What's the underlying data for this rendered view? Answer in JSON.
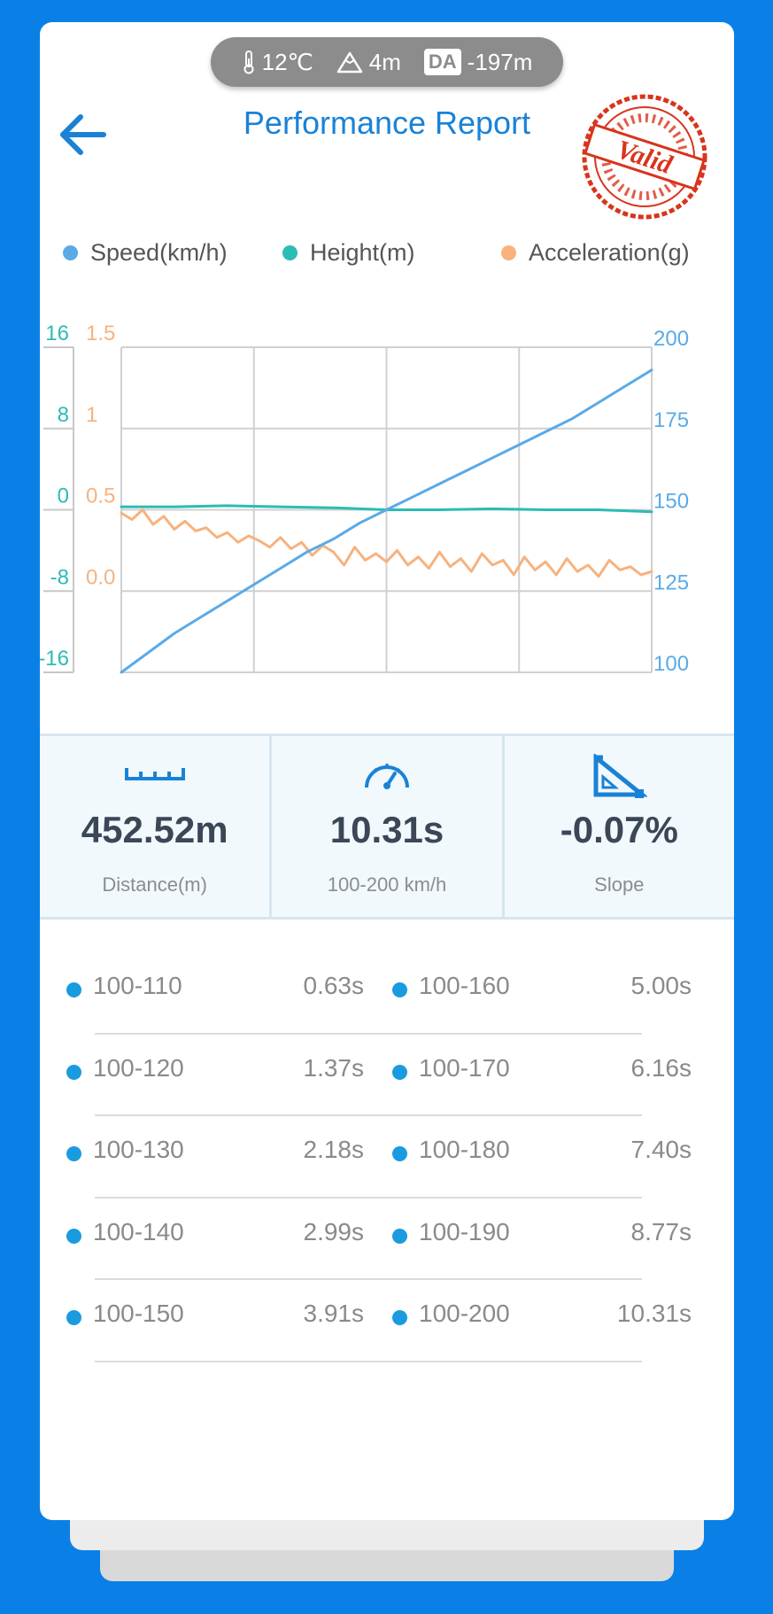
{
  "environment": {
    "temperature": "12℃",
    "altitude": "4m",
    "density_badge": "DA",
    "density_altitude": "-197m"
  },
  "header": {
    "title": "Performance Report",
    "stamp": "Valid"
  },
  "colors": {
    "speed": "#5aaae8",
    "height": "#2bbcb4",
    "acceleration": "#f7b27e",
    "accent": "#1a82d6"
  },
  "chart_data": {
    "type": "line",
    "legend": [
      "Speed(km/h)",
      "Height(m)",
      "Acceleration(g)"
    ],
    "legend_placement": "top",
    "grid": true,
    "axes": {
      "height": {
        "ticks": [
          "16",
          "8",
          "0",
          "-8",
          "-16"
        ],
        "range": [
          -16,
          16
        ]
      },
      "acceleration": {
        "ticks": [
          "1.5",
          "1",
          "0.5",
          "0.0"
        ],
        "range": [
          -0.5,
          1.5
        ]
      },
      "speed": {
        "ticks": [
          "200",
          "175",
          "150",
          "125",
          "100"
        ],
        "range": [
          100,
          200
        ]
      }
    },
    "series": [
      {
        "name": "Speed(km/h)",
        "axis": "speed",
        "x": [
          0,
          0.05,
          0.1,
          0.15,
          0.2,
          0.25,
          0.3,
          0.35,
          0.4,
          0.45,
          0.5,
          0.55,
          0.6,
          0.65,
          0.7,
          0.75,
          0.8,
          0.85,
          0.9,
          0.95,
          1.0
        ],
        "values": [
          100,
          106,
          112,
          117,
          122,
          127,
          132,
          137,
          141,
          146,
          150,
          154,
          158,
          162,
          166,
          170,
          174,
          178,
          183,
          188,
          193
        ]
      },
      {
        "name": "Height(m)",
        "axis": "height",
        "x": [
          0,
          0.1,
          0.2,
          0.3,
          0.4,
          0.5,
          0.6,
          0.7,
          0.8,
          0.9,
          1.0
        ],
        "values": [
          0.3,
          0.3,
          0.4,
          0.3,
          0.2,
          0.0,
          0.0,
          0.1,
          0.0,
          0.0,
          -0.2
        ]
      },
      {
        "name": "Acceleration(g)",
        "axis": "acceleration",
        "x": [
          0,
          0.02,
          0.04,
          0.06,
          0.08,
          0.1,
          0.12,
          0.14,
          0.16,
          0.18,
          0.2,
          0.22,
          0.24,
          0.26,
          0.28,
          0.3,
          0.32,
          0.34,
          0.36,
          0.38,
          0.4,
          0.42,
          0.44,
          0.46,
          0.48,
          0.5,
          0.52,
          0.54,
          0.56,
          0.58,
          0.6,
          0.62,
          0.64,
          0.66,
          0.68,
          0.7,
          0.72,
          0.74,
          0.76,
          0.78,
          0.8,
          0.82,
          0.84,
          0.86,
          0.88,
          0.9,
          0.92,
          0.94,
          0.96,
          0.98,
          1.0
        ],
        "values": [
          0.48,
          0.44,
          0.5,
          0.41,
          0.46,
          0.38,
          0.43,
          0.37,
          0.39,
          0.33,
          0.36,
          0.3,
          0.34,
          0.31,
          0.27,
          0.33,
          0.26,
          0.3,
          0.22,
          0.28,
          0.24,
          0.16,
          0.27,
          0.19,
          0.23,
          0.18,
          0.25,
          0.16,
          0.21,
          0.14,
          0.24,
          0.15,
          0.2,
          0.12,
          0.23,
          0.16,
          0.19,
          0.1,
          0.21,
          0.13,
          0.18,
          0.1,
          0.2,
          0.12,
          0.16,
          0.09,
          0.19,
          0.13,
          0.15,
          0.1,
          0.12
        ]
      }
    ]
  },
  "stats": [
    {
      "icon": "ruler-icon",
      "value": "452.52m",
      "label": "Distance(m)"
    },
    {
      "icon": "speedometer-icon",
      "value": "10.31s",
      "label": "100-200 km/h"
    },
    {
      "icon": "slope-icon",
      "value": "-0.07%",
      "label": "Slope"
    }
  ],
  "splits": [
    {
      "left_label": "100-110",
      "left_time": "0.63s",
      "right_label": "100-160",
      "right_time": "5.00s"
    },
    {
      "left_label": "100-120",
      "left_time": "1.37s",
      "right_label": "100-170",
      "right_time": "6.16s"
    },
    {
      "left_label": "100-130",
      "left_time": "2.18s",
      "right_label": "100-180",
      "right_time": "7.40s"
    },
    {
      "left_label": "100-140",
      "left_time": "2.99s",
      "right_label": "100-190",
      "right_time": "8.77s"
    },
    {
      "left_label": "100-150",
      "left_time": "3.91s",
      "right_label": "100-200",
      "right_time": "10.31s"
    }
  ]
}
